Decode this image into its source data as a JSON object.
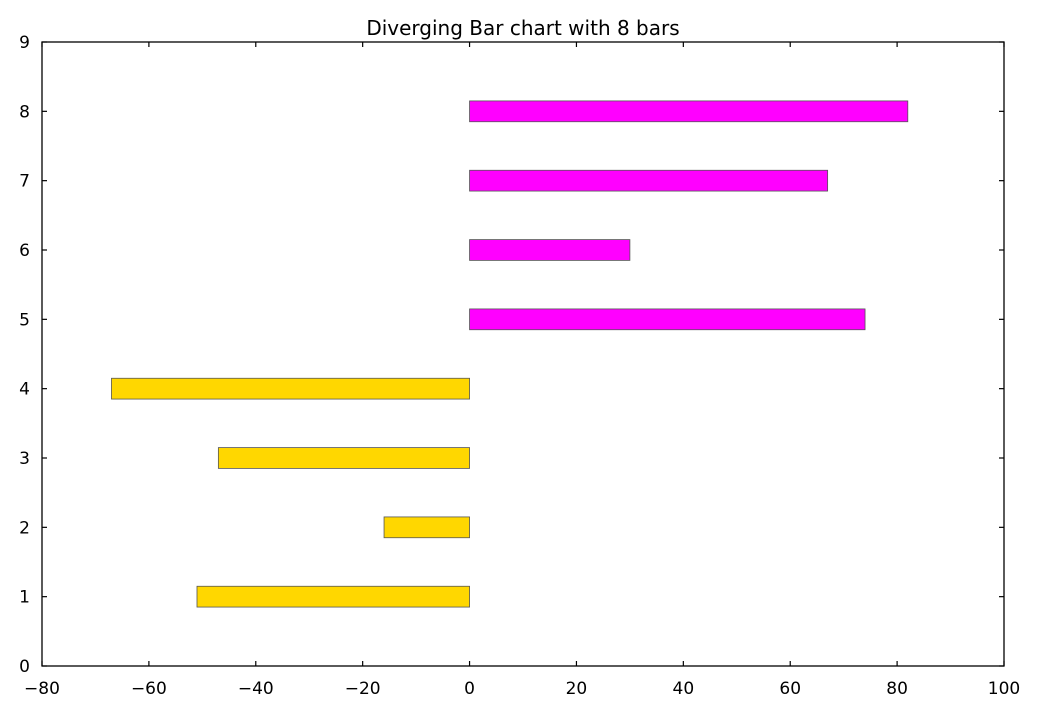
{
  "chart_data": {
    "type": "bar",
    "orientation": "horizontal",
    "title": "Diverging Bar chart with 8 bars",
    "xlabel": "",
    "ylabel": "",
    "xlim": [
      -80,
      100
    ],
    "ylim": [
      0,
      9
    ],
    "x_ticks": [
      -80,
      -60,
      -40,
      -20,
      0,
      20,
      40,
      60,
      80,
      100
    ],
    "x_tick_labels": [
      "−80",
      "−60",
      "−40",
      "−20",
      "0",
      "20",
      "40",
      "60",
      "80",
      "100"
    ],
    "y_ticks": [
      0,
      1,
      2,
      3,
      4,
      5,
      6,
      7,
      8,
      9
    ],
    "y_tick_labels": [
      "0",
      "1",
      "2",
      "3",
      "4",
      "5",
      "6",
      "7",
      "8",
      "9"
    ],
    "grid": false,
    "legend": false,
    "positions": [
      1,
      2,
      3,
      4,
      5,
      6,
      7,
      8
    ],
    "values": [
      -51,
      -16,
      -47,
      -67,
      74,
      30,
      67,
      82
    ],
    "colors": {
      "negative": "#ffd700",
      "positive": "#ff00ff",
      "edge": "#555555"
    }
  }
}
